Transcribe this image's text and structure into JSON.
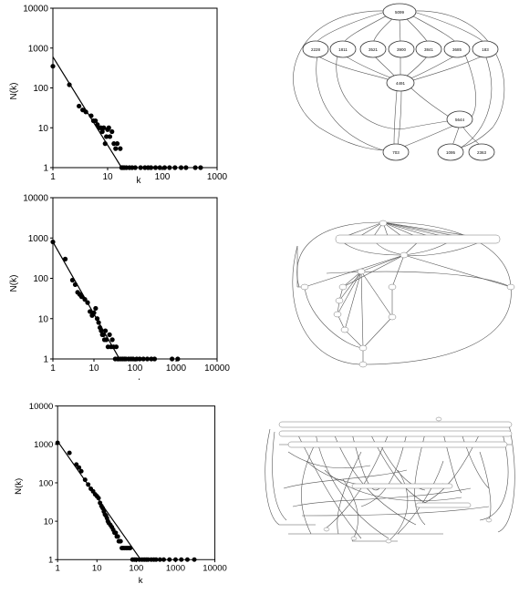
{
  "chart_data": [
    {
      "type": "scatter",
      "title": "",
      "xlabel": "k",
      "ylabel": "N(k)",
      "x_scale": "log",
      "y_scale": "log",
      "xlim": [
        1,
        1000
      ],
      "ylim": [
        1,
        10000
      ],
      "x_ticks": [
        "1",
        "10",
        "100",
        "1000"
      ],
      "y_ticks": [
        "1",
        "10",
        "100",
        "1000",
        "10000"
      ],
      "fit_line": {
        "x": [
          1,
          18
        ],
        "y": [
          600,
          1
        ]
      },
      "points": [
        [
          1,
          350
        ],
        [
          2,
          120
        ],
        [
          3,
          35
        ],
        [
          3.5,
          28
        ],
        [
          4,
          25
        ],
        [
          5,
          20
        ],
        [
          5.5,
          15
        ],
        [
          6,
          15
        ],
        [
          6.5,
          12
        ],
        [
          7,
          10
        ],
        [
          7.5,
          10
        ],
        [
          8,
          8
        ],
        [
          8.5,
          10
        ],
        [
          9,
          4
        ],
        [
          9.5,
          6
        ],
        [
          10,
          9
        ],
        [
          10.5,
          10
        ],
        [
          11,
          6
        ],
        [
          12,
          8
        ],
        [
          13,
          4
        ],
        [
          14,
          3
        ],
        [
          15,
          4
        ],
        [
          17,
          3
        ],
        [
          18,
          1
        ],
        [
          19,
          1
        ],
        [
          20,
          1
        ],
        [
          22,
          1
        ],
        [
          25,
          1
        ],
        [
          28,
          1
        ],
        [
          32,
          1
        ],
        [
          40,
          1
        ],
        [
          48,
          1
        ],
        [
          55,
          1
        ],
        [
          62,
          1
        ],
        [
          75,
          1
        ],
        [
          90,
          1
        ],
        [
          110,
          1
        ],
        [
          135,
          1
        ],
        [
          170,
          1
        ],
        [
          220,
          1
        ],
        [
          270,
          1
        ],
        [
          400,
          1
        ],
        [
          500,
          1
        ]
      ]
    },
    {
      "type": "scatter",
      "title": "",
      "xlabel": "k",
      "ylabel": "N(k)",
      "x_scale": "log",
      "y_scale": "log",
      "xlim": [
        1,
        10000
      ],
      "ylim": [
        1,
        10000
      ],
      "x_ticks": [
        "1",
        "10",
        "100",
        "1000",
        "10000"
      ],
      "y_ticks": [
        "1",
        "10",
        "100",
        "1000",
        "10000"
      ],
      "fit_line": {
        "x": [
          1,
          42
        ],
        "y": [
          800,
          1
        ]
      },
      "points": [
        [
          1,
          800
        ],
        [
          2,
          300
        ],
        [
          3,
          90
        ],
        [
          3.5,
          70
        ],
        [
          4,
          45
        ],
        [
          4.5,
          40
        ],
        [
          5,
          35
        ],
        [
          6,
          30
        ],
        [
          7,
          25
        ],
        [
          8,
          15
        ],
        [
          9,
          12
        ],
        [
          10,
          14
        ],
        [
          11,
          18
        ],
        [
          12,
          10
        ],
        [
          13,
          8
        ],
        [
          14,
          6
        ],
        [
          15,
          5
        ],
        [
          16,
          4
        ],
        [
          17,
          4
        ],
        [
          18,
          3
        ],
        [
          19,
          5
        ],
        [
          20,
          3
        ],
        [
          22,
          2
        ],
        [
          24,
          4
        ],
        [
          26,
          2
        ],
        [
          28,
          3
        ],
        [
          30,
          2
        ],
        [
          33,
          1
        ],
        [
          35,
          2
        ],
        [
          38,
          1
        ],
        [
          40,
          1
        ],
        [
          45,
          1
        ],
        [
          50,
          1
        ],
        [
          55,
          1
        ],
        [
          60,
          1
        ],
        [
          70,
          1
        ],
        [
          80,
          1
        ],
        [
          90,
          1
        ],
        [
          110,
          1
        ],
        [
          130,
          1
        ],
        [
          160,
          1
        ],
        [
          200,
          1
        ],
        [
          250,
          1
        ],
        [
          300,
          1
        ],
        [
          800,
          1
        ],
        [
          1100,
          1
        ]
      ]
    },
    {
      "type": "scatter",
      "title": "",
      "xlabel": "k",
      "ylabel": "N(k)",
      "x_scale": "log",
      "y_scale": "log",
      "xlim": [
        1,
        10000
      ],
      "ylim": [
        1,
        10000
      ],
      "x_ticks": [
        "1",
        "10",
        "100",
        "1000",
        "10000"
      ],
      "y_ticks": [
        "1",
        "10",
        "100",
        "1000",
        "10000"
      ],
      "fit_line": {
        "x": [
          1,
          130
        ],
        "y": [
          1200,
          1
        ]
      },
      "points": [
        [
          1,
          1100
        ],
        [
          2,
          600
        ],
        [
          3,
          300
        ],
        [
          3.5,
          250
        ],
        [
          4,
          200
        ],
        [
          5,
          120
        ],
        [
          6,
          90
        ],
        [
          7,
          70
        ],
        [
          8,
          60
        ],
        [
          9,
          50
        ],
        [
          10,
          45
        ],
        [
          11,
          40
        ],
        [
          12,
          30
        ],
        [
          13,
          25
        ],
        [
          14,
          22
        ],
        [
          15,
          18
        ],
        [
          16,
          15
        ],
        [
          17,
          14
        ],
        [
          18,
          12
        ],
        [
          19,
          10
        ],
        [
          20,
          9
        ],
        [
          22,
          8
        ],
        [
          24,
          7
        ],
        [
          26,
          6
        ],
        [
          28,
          5
        ],
        [
          30,
          5
        ],
        [
          32,
          4
        ],
        [
          34,
          4
        ],
        [
          36,
          3
        ],
        [
          38,
          3
        ],
        [
          40,
          3
        ],
        [
          43,
          2
        ],
        [
          46,
          2
        ],
        [
          50,
          2
        ],
        [
          55,
          2
        ],
        [
          60,
          2
        ],
        [
          65,
          2
        ],
        [
          70,
          2
        ],
        [
          80,
          1
        ],
        [
          90,
          1
        ],
        [
          100,
          1
        ],
        [
          120,
          1
        ],
        [
          140,
          1
        ],
        [
          160,
          1
        ],
        [
          180,
          1
        ],
        [
          200,
          1
        ],
        [
          240,
          1
        ],
        [
          280,
          1
        ],
        [
          320,
          1
        ],
        [
          400,
          1
        ],
        [
          500,
          1
        ],
        [
          700,
          1
        ],
        [
          1000,
          1
        ],
        [
          1400,
          1
        ],
        [
          2000,
          1
        ],
        [
          3000,
          1
        ]
      ]
    }
  ],
  "graph_labels": [
    "5099",
    "2228",
    "1811",
    "3521",
    "3900",
    "3841",
    "3685",
    "183",
    "4491",
    "5644",
    "703",
    "1095",
    "2363"
  ]
}
